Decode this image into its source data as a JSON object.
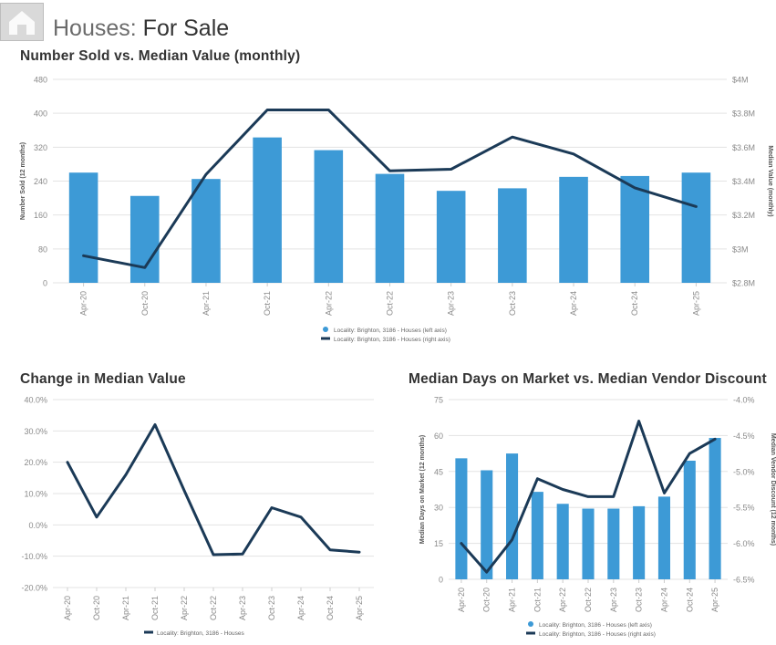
{
  "header": {
    "title_prefix": "Houses:",
    "title_main": "For Sale",
    "icon": "house-icon"
  },
  "colors": {
    "bar": "#3d9ad6",
    "line": "#1b3a57",
    "grid": "#e3e3e3",
    "axis_text": "#8a8a8a"
  },
  "chart_data": [
    {
      "type": "bar",
      "title": "Number Sold vs. Median Value (monthly)",
      "categories": [
        "Apr-20",
        "Oct-20",
        "Apr-21",
        "Oct-21",
        "Apr-22",
        "Oct-22",
        "Apr-23",
        "Oct-23",
        "Apr-24",
        "Oct-24",
        "Apr-25"
      ],
      "series": [
        {
          "name": "Locality: Brighton, 3186 - Houses (left axis)",
          "type": "bar",
          "axis": "left",
          "values": [
            260,
            205,
            245,
            343,
            313,
            257,
            217,
            223,
            250,
            252,
            260
          ]
        },
        {
          "name": "Locality: Brighton, 3186 - Houses (right axis)",
          "type": "line",
          "axis": "right",
          "values": [
            2.96,
            2.89,
            3.44,
            3.82,
            3.82,
            3.46,
            3.47,
            3.66,
            3.56,
            3.36,
            3.25
          ]
        }
      ],
      "ylabel": "Number Sold (12 months)",
      "ylabel_right": "Median Value (monthly)",
      "ylim": [
        0,
        480
      ],
      "ylim_right": [
        2.8,
        4.0
      ],
      "yticks": [
        "480",
        "400",
        "320",
        "240",
        "160",
        "80",
        "0"
      ],
      "yticks_right": [
        "$4M",
        "$3.8M",
        "$3.6M",
        "$3.4M",
        "$3.2M",
        "$3M",
        "$2.8M"
      ],
      "legend": [
        "Locality: Brighton, 3186 - Houses (left axis)",
        "Locality: Brighton, 3186 - Houses (right axis)"
      ]
    },
    {
      "type": "line",
      "title": "Change in Median Value",
      "categories": [
        "Apr-20",
        "Oct-20",
        "Apr-21",
        "Oct-21",
        "Apr-22",
        "Oct-22",
        "Apr-23",
        "Oct-23",
        "Apr-24",
        "Oct-24",
        "Apr-25"
      ],
      "series": [
        {
          "name": "Locality: Brighton, 3186 - Houses",
          "values": [
            20.0,
            2.5,
            16.0,
            32.0,
            11.0,
            -9.5,
            -9.3,
            5.5,
            2.5,
            -8.0,
            -8.7
          ]
        }
      ],
      "ylim": [
        -20,
        40
      ],
      "yticks": [
        "40.0%",
        "30.0%",
        "20.0%",
        "10.0%",
        "0.0%",
        "-10.0%",
        "-20.0%"
      ],
      "legend": [
        "Locality: Brighton, 3186 - Houses"
      ]
    },
    {
      "type": "bar",
      "title": "Median Days on Market vs. Median Vendor Discount",
      "categories": [
        "Apr-20",
        "Oct-20",
        "Apr-21",
        "Oct-21",
        "Apr-22",
        "Oct-22",
        "Apr-23",
        "Oct-23",
        "Apr-24",
        "Oct-24",
        "Apr-25"
      ],
      "series": [
        {
          "name": "Locality: Brighton, 3186 - Houses (left axis)",
          "type": "bar",
          "axis": "left",
          "values": [
            50.5,
            45.5,
            52.5,
            36.5,
            31.5,
            29.5,
            29.5,
            30.5,
            34.5,
            49.5,
            59
          ]
        },
        {
          "name": "Locality: Brighton, 3186 - Houses (right axis)",
          "type": "line",
          "axis": "right",
          "values": [
            -6.0,
            -6.4,
            -5.95,
            -5.1,
            -5.25,
            -5.35,
            -5.35,
            -4.3,
            -5.3,
            -4.75,
            -4.55
          ]
        }
      ],
      "ylabel": "Median Days on Market (12 months)",
      "ylabel_right": "Median Vendor Discount (12 months)",
      "ylim": [
        0,
        75
      ],
      "ylim_right": [
        -6.5,
        -4.0
      ],
      "yticks": [
        "75",
        "60",
        "45",
        "30",
        "15",
        "0"
      ],
      "yticks_right": [
        "-4.0%",
        "-4.5%",
        "-5.0%",
        "-5.5%",
        "-6.0%",
        "-6.5%"
      ],
      "legend": [
        "Locality: Brighton, 3186 - Houses (left axis)",
        "Locality: Brighton, 3186 - Houses (right axis)"
      ]
    }
  ]
}
